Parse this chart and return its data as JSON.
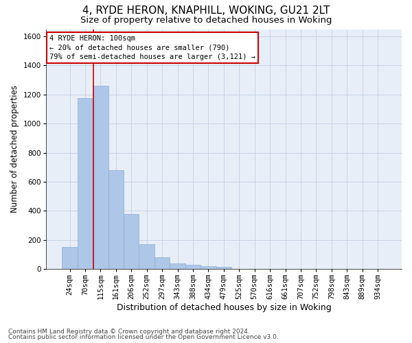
{
  "title1": "4, RYDE HERON, KNAPHILL, WOKING, GU21 2LT",
  "title2": "Size of property relative to detached houses in Woking",
  "xlabel": "Distribution of detached houses by size in Woking",
  "ylabel": "Number of detached properties",
  "categories": [
    "24sqm",
    "70sqm",
    "115sqm",
    "161sqm",
    "206sqm",
    "252sqm",
    "297sqm",
    "343sqm",
    "388sqm",
    "434sqm",
    "479sqm",
    "525sqm",
    "570sqm",
    "616sqm",
    "661sqm",
    "707sqm",
    "752sqm",
    "798sqm",
    "843sqm",
    "889sqm",
    "934sqm"
  ],
  "values": [
    150,
    1175,
    1260,
    680,
    380,
    170,
    80,
    38,
    30,
    20,
    15,
    0,
    0,
    0,
    0,
    0,
    0,
    0,
    0,
    0,
    0
  ],
  "bar_color": "#aec6e8",
  "bar_edge_color": "#8ab0d0",
  "annotation_text": "4 RYDE HERON: 100sqm\n← 20% of detached houses are smaller (790)\n79% of semi-detached houses are larger (3,121) →",
  "annotation_box_color": "#ffffff",
  "annotation_box_edge": "#cc0000",
  "vline_color": "#cc0000",
  "vline_x": 1.55,
  "ylim": [
    0,
    1650
  ],
  "yticks": [
    0,
    200,
    400,
    600,
    800,
    1000,
    1200,
    1400,
    1600
  ],
  "grid_color": "#c8d4e4",
  "bg_color": "#e8eef8",
  "footer1": "Contains HM Land Registry data © Crown copyright and database right 2024.",
  "footer2": "Contains public sector information licensed under the Open Government Licence v3.0.",
  "title1_fontsize": 11,
  "title2_fontsize": 9.5,
  "xlabel_fontsize": 9,
  "ylabel_fontsize": 8.5,
  "tick_fontsize": 7.5,
  "annotation_fontsize": 7.5,
  "footer_fontsize": 6.5
}
